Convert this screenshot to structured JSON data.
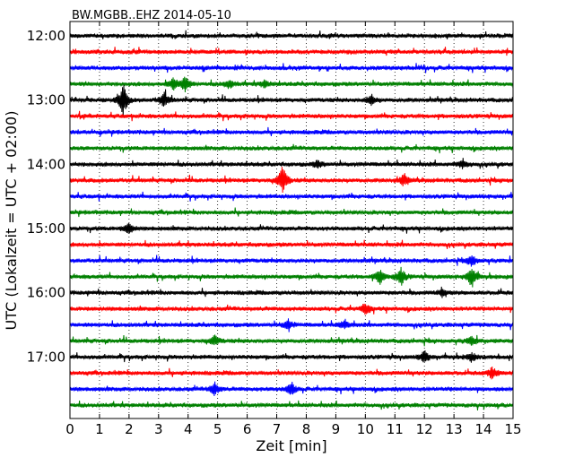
{
  "chart_data": {
    "type": "line",
    "title": "BW.MGBB..EHZ 2014-05-10",
    "xlabel": "Zeit  [min]",
    "ylabel": "UTC (Lokalzeit = UTC + 02:00)",
    "xlim": [
      0,
      15
    ],
    "x_ticks": [
      "0",
      "1",
      "2",
      "3",
      "4",
      "5",
      "6",
      "7",
      "8",
      "9",
      "10",
      "11",
      "12",
      "13",
      "14",
      "15"
    ],
    "y_ticks": [
      "12:00",
      "13:00",
      "14:00",
      "15:00",
      "16:00",
      "17:00"
    ],
    "grid": "vertical dotted",
    "trace_colors": [
      "#000000",
      "#ff0000",
      "#0000ff",
      "#008000"
    ],
    "traces": [
      {
        "start": "12:00",
        "color": "#000000",
        "events": []
      },
      {
        "start": "12:15",
        "color": "#ff0000",
        "events": []
      },
      {
        "start": "12:30",
        "color": "#0000ff",
        "events": []
      },
      {
        "start": "12:45",
        "color": "#008000",
        "events": [
          [
            3.5,
            7
          ],
          [
            3.9,
            8
          ],
          [
            5.4,
            5
          ],
          [
            6.6,
            4
          ]
        ]
      },
      {
        "start": "13:00",
        "color": "#000000",
        "events": [
          [
            1.8,
            18
          ],
          [
            3.2,
            9
          ],
          [
            10.2,
            6
          ]
        ]
      },
      {
        "start": "13:15",
        "color": "#ff0000",
        "events": []
      },
      {
        "start": "13:30",
        "color": "#0000ff",
        "events": []
      },
      {
        "start": "13:45",
        "color": "#008000",
        "events": []
      },
      {
        "start": "14:00",
        "color": "#000000",
        "events": [
          [
            8.4,
            4
          ],
          [
            13.3,
            5
          ]
        ]
      },
      {
        "start": "14:15",
        "color": "#ff0000",
        "events": [
          [
            7.2,
            17
          ],
          [
            11.3,
            6
          ]
        ]
      },
      {
        "start": "14:30",
        "color": "#0000ff",
        "events": []
      },
      {
        "start": "14:45",
        "color": "#008000",
        "events": []
      },
      {
        "start": "15:00",
        "color": "#000000",
        "events": [
          [
            2.0,
            6
          ]
        ]
      },
      {
        "start": "15:15",
        "color": "#ff0000",
        "events": []
      },
      {
        "start": "15:30",
        "color": "#0000ff",
        "events": [
          [
            13.6,
            6
          ]
        ]
      },
      {
        "start": "15:45",
        "color": "#008000",
        "events": [
          [
            10.5,
            9
          ],
          [
            11.2,
            10
          ],
          [
            13.6,
            12
          ]
        ]
      },
      {
        "start": "16:00",
        "color": "#000000",
        "events": [
          [
            12.6,
            4
          ]
        ]
      },
      {
        "start": "16:15",
        "color": "#ff0000",
        "events": [
          [
            10.0,
            6
          ]
        ]
      },
      {
        "start": "16:30",
        "color": "#0000ff",
        "events": [
          [
            7.4,
            6
          ],
          [
            9.3,
            5
          ]
        ]
      },
      {
        "start": "16:45",
        "color": "#008000",
        "events": [
          [
            4.9,
            6
          ],
          [
            13.6,
            5
          ]
        ]
      },
      {
        "start": "17:00",
        "color": "#000000",
        "events": [
          [
            12.0,
            7
          ],
          [
            13.6,
            5
          ]
        ]
      },
      {
        "start": "17:15",
        "color": "#ff0000",
        "events": [
          [
            14.3,
            7
          ]
        ]
      },
      {
        "start": "17:30",
        "color": "#0000ff",
        "events": [
          [
            4.9,
            7
          ],
          [
            7.5,
            7
          ]
        ]
      },
      {
        "start": "17:45",
        "color": "#008000",
        "events": []
      }
    ]
  }
}
